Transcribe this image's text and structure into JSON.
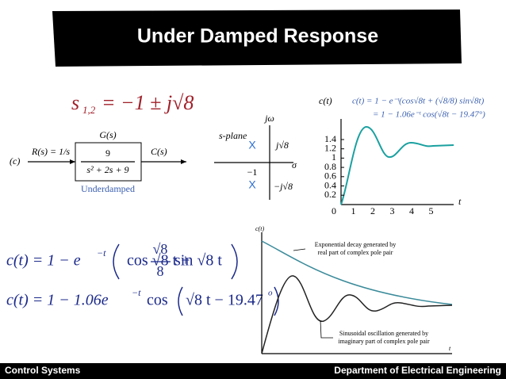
{
  "header": {
    "title": "Under Damped Response"
  },
  "poles": {
    "lhs": "s",
    "sub": "1,2",
    "rhs": "= −1 ± j√8"
  },
  "block_diagram": {
    "tag": "(c)",
    "input": "R(s) = 1/s",
    "block_label": "G(s)",
    "numerator": "9",
    "denominator": "s² + 2s + 9",
    "output": "C(s)",
    "caption": "Underdamped"
  },
  "s_plane": {
    "vertical_axis": "jω",
    "name": "s-plane",
    "upper_pole_mark": "X",
    "lower_pole_mark": "X",
    "upper_pole": "j√8",
    "lower_pole": "−j√8",
    "horizontal_axis": "σ",
    "real_part": "−1"
  },
  "response_plot": {
    "y_label": "c(t)",
    "equation_line_1": "c(t) = 1 − e⁻ᵗ(cos√8t + (√8/8) sin√8t)",
    "equation_line_2": "= 1 − 1.06e⁻ᵗ cos(√8t − 19.47°)",
    "y_tick_labels": [
      "1.4",
      "1.2",
      "1",
      "0.8",
      "0.6",
      "0.4",
      "0.2"
    ],
    "x_tick_labels": [
      "0",
      "1",
      "2",
      "3",
      "4",
      "5"
    ],
    "x_label": "t"
  },
  "equations": {
    "line_1": {
      "lhs": "c(t) = 1 − e",
      "exponent": "−t",
      "term_1": "cos √8 t +",
      "numerator": "√8",
      "denominator": "8",
      "term_2": "sin √8 t"
    },
    "line_2": {
      "lhs": "c(t) = 1 − 1.06e",
      "exponent": "−t",
      "term": "cos",
      "inner": "√8 t − 19.47",
      "degree": "o"
    }
  },
  "decay_plot": {
    "y_label": "c(t)",
    "envelope_note_1": "Exponential decay generated by",
    "envelope_note_2": "real part of complex pole pair",
    "oscillation_note_1": "Sinusoidal oscillation generated by",
    "oscillation_note_2": "imaginary part of complex pole pair",
    "x_label": "t"
  },
  "footer": {
    "left": "Control Systems",
    "right": "Department of Electrical Engineering"
  }
}
